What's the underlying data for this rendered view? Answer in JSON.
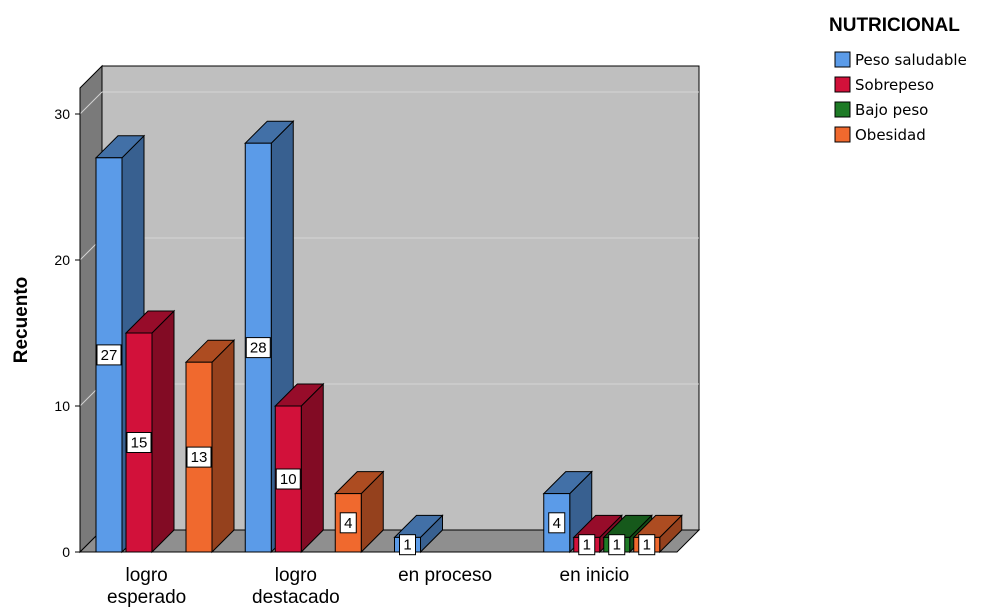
{
  "chart_data": {
    "type": "bar",
    "style": "3d-clustered",
    "categories": [
      "logro esperado",
      "logro destacado",
      "en proceso",
      "en inicio"
    ],
    "series": [
      {
        "name": "Peso saludable",
        "color": "#5b9be8",
        "values": [
          27,
          28,
          1,
          4
        ]
      },
      {
        "name": "Sobrepeso",
        "color": "#d2113a",
        "values": [
          15,
          10,
          null,
          1
        ]
      },
      {
        "name": "Bajo peso",
        "color": "#1e7b26",
        "values": [
          null,
          null,
          null,
          1
        ]
      },
      {
        "name": "Obesidad",
        "color": "#f0692e",
        "values": [
          13,
          4,
          null,
          1
        ]
      }
    ],
    "ylabel": "Recuento",
    "xlabel": "",
    "ylim": [
      0,
      30
    ],
    "yticks": [
      0,
      10,
      20,
      30
    ],
    "grid": true,
    "legend_title": "NUTRICIONAL",
    "legend_position": "top-right",
    "data_labels": true,
    "colors": {
      "wall": "#bfbfbf",
      "side_wall": "#7a7a7a",
      "floor": "#8f8f8f",
      "gridline": "#d4d4d4"
    }
  }
}
